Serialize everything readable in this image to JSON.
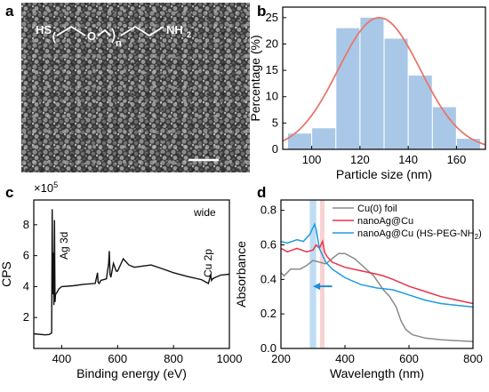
{
  "panels": {
    "a": {
      "label": "a",
      "formula": {
        "left": "HS",
        "mid": "O",
        "sub": "n",
        "right": "NH",
        "right_sub": "2"
      }
    },
    "b": {
      "label": "b"
    },
    "c": {
      "label": "c"
    },
    "d": {
      "label": "d"
    }
  },
  "chart_data": [
    {
      "panel": "b",
      "type": "bar",
      "categories": [
        95,
        105,
        115,
        125,
        135,
        145,
        155,
        165
      ],
      "values": [
        3,
        4,
        23,
        25,
        21,
        14,
        8,
        2
      ],
      "fit": {
        "type": "gaussian",
        "center": 128,
        "sigma": 17,
        "peak": 25,
        "color": "#e8776a"
      },
      "bar_color": "#a9c8e8",
      "xlabel": "Particle size (nm)",
      "ylabel": "Percentage (%)",
      "xlim": [
        88,
        172
      ],
      "ylim": [
        0,
        27
      ],
      "xticks": [
        100,
        120,
        140,
        160
      ],
      "yticks": [
        0,
        5,
        10,
        15,
        20,
        25
      ]
    },
    {
      "panel": "c",
      "type": "line",
      "xlabel": "Binding energy (eV)",
      "ylabel": "CPS",
      "multiplier_base": "×10",
      "multiplier_exp": "5",
      "xlim": [
        300,
        1000
      ],
      "ylim": [
        0,
        9.6
      ],
      "xticks": [
        400,
        600,
        800,
        1000
      ],
      "yticks": [
        2,
        4,
        6,
        8
      ],
      "annotations": [
        "wide",
        "Ag 3d",
        "Cu 2p"
      ],
      "series": [
        {
          "color": "#111111",
          "x": [
            300,
            340,
            355,
            364,
            366,
            368,
            370,
            372,
            374,
            376,
            378,
            382,
            390,
            400,
            440,
            480,
            520,
            528,
            530,
            534,
            540,
            560,
            568,
            570,
            573,
            576,
            585,
            595,
            600,
            620,
            640,
            660,
            680,
            700,
            720,
            760,
            800,
            850,
            900,
            925,
            930,
            933,
            936,
            940,
            950,
            970,
            1000
          ],
          "y": [
            0.95,
            0.88,
            0.9,
            1.0,
            9.0,
            3.5,
            6.2,
            2.8,
            8.3,
            3.0,
            3.5,
            3.6,
            3.85,
            4.0,
            4.05,
            4.15,
            4.2,
            4.9,
            4.3,
            4.2,
            4.4,
            4.5,
            5.5,
            6.3,
            4.8,
            4.6,
            5.5,
            5.0,
            5.0,
            5.8,
            5.4,
            5.25,
            5.3,
            5.35,
            5.4,
            5.15,
            4.9,
            4.65,
            4.45,
            4.2,
            4.55,
            4.8,
            4.4,
            4.5,
            4.6,
            4.75,
            4.8
          ]
        }
      ]
    },
    {
      "panel": "d",
      "type": "line",
      "xlabel": "Wavelength (nm)",
      "ylabel": "Absorbance",
      "xlim": [
        200,
        800
      ],
      "ylim": [
        0.0,
        0.86
      ],
      "xticks": [
        200,
        400,
        600,
        800
      ],
      "yticks": [
        0.0,
        0.2,
        0.4,
        0.6,
        0.8
      ],
      "highlights": [
        {
          "from": 290,
          "to": 310,
          "color": "#a9d0f0"
        },
        {
          "from": 322,
          "to": 336,
          "color": "#f6c3c3"
        }
      ],
      "arrow": {
        "from": 360,
        "to": 300,
        "y": 0.36,
        "color": "#1e8fd8"
      },
      "series": [
        {
          "name": "Cu(0) foil",
          "color": "#8a8a8a",
          "x": [
            200,
            210,
            230,
            260,
            280,
            300,
            320,
            340,
            360,
            380,
            400,
            430,
            460,
            490,
            520,
            540,
            560,
            575,
            590,
            610,
            650,
            700,
            750,
            800
          ],
          "y": [
            0.44,
            0.42,
            0.46,
            0.46,
            0.48,
            0.51,
            0.5,
            0.49,
            0.52,
            0.55,
            0.55,
            0.52,
            0.47,
            0.42,
            0.34,
            0.3,
            0.24,
            0.16,
            0.11,
            0.08,
            0.06,
            0.05,
            0.045,
            0.04
          ]
        },
        {
          "name": "nanoAg@Cu",
          "color": "#e8334a",
          "x": [
            200,
            220,
            250,
            280,
            300,
            310,
            320,
            330,
            336,
            345,
            360,
            400,
            450,
            500,
            520,
            550,
            600,
            650,
            700,
            750,
            800
          ],
          "y": [
            0.58,
            0.56,
            0.58,
            0.56,
            0.57,
            0.6,
            0.58,
            0.62,
            0.56,
            0.53,
            0.5,
            0.47,
            0.45,
            0.43,
            0.42,
            0.4,
            0.36,
            0.33,
            0.3,
            0.28,
            0.26
          ]
        },
        {
          "name": "nanoAg@Cu (HS-PEG-NH2)",
          "color": "#1e9be0",
          "x": [
            200,
            220,
            250,
            270,
            290,
            300,
            305,
            310,
            320,
            340,
            360,
            400,
            450,
            500,
            550,
            600,
            650,
            700,
            750,
            800
          ],
          "y": [
            0.62,
            0.61,
            0.63,
            0.62,
            0.66,
            0.7,
            0.72,
            0.69,
            0.58,
            0.5,
            0.46,
            0.41,
            0.37,
            0.35,
            0.34,
            0.31,
            0.28,
            0.26,
            0.25,
            0.24
          ]
        }
      ],
      "legend_position": "top-right"
    }
  ],
  "legend_d": {
    "items": [
      {
        "text": "Cu(0) foil"
      },
      {
        "text": "nanoAg@Cu"
      },
      {
        "text": "nanoAg@Cu (HS-PEG-NH",
        "sub": "2",
        "tail": ")"
      }
    ]
  }
}
